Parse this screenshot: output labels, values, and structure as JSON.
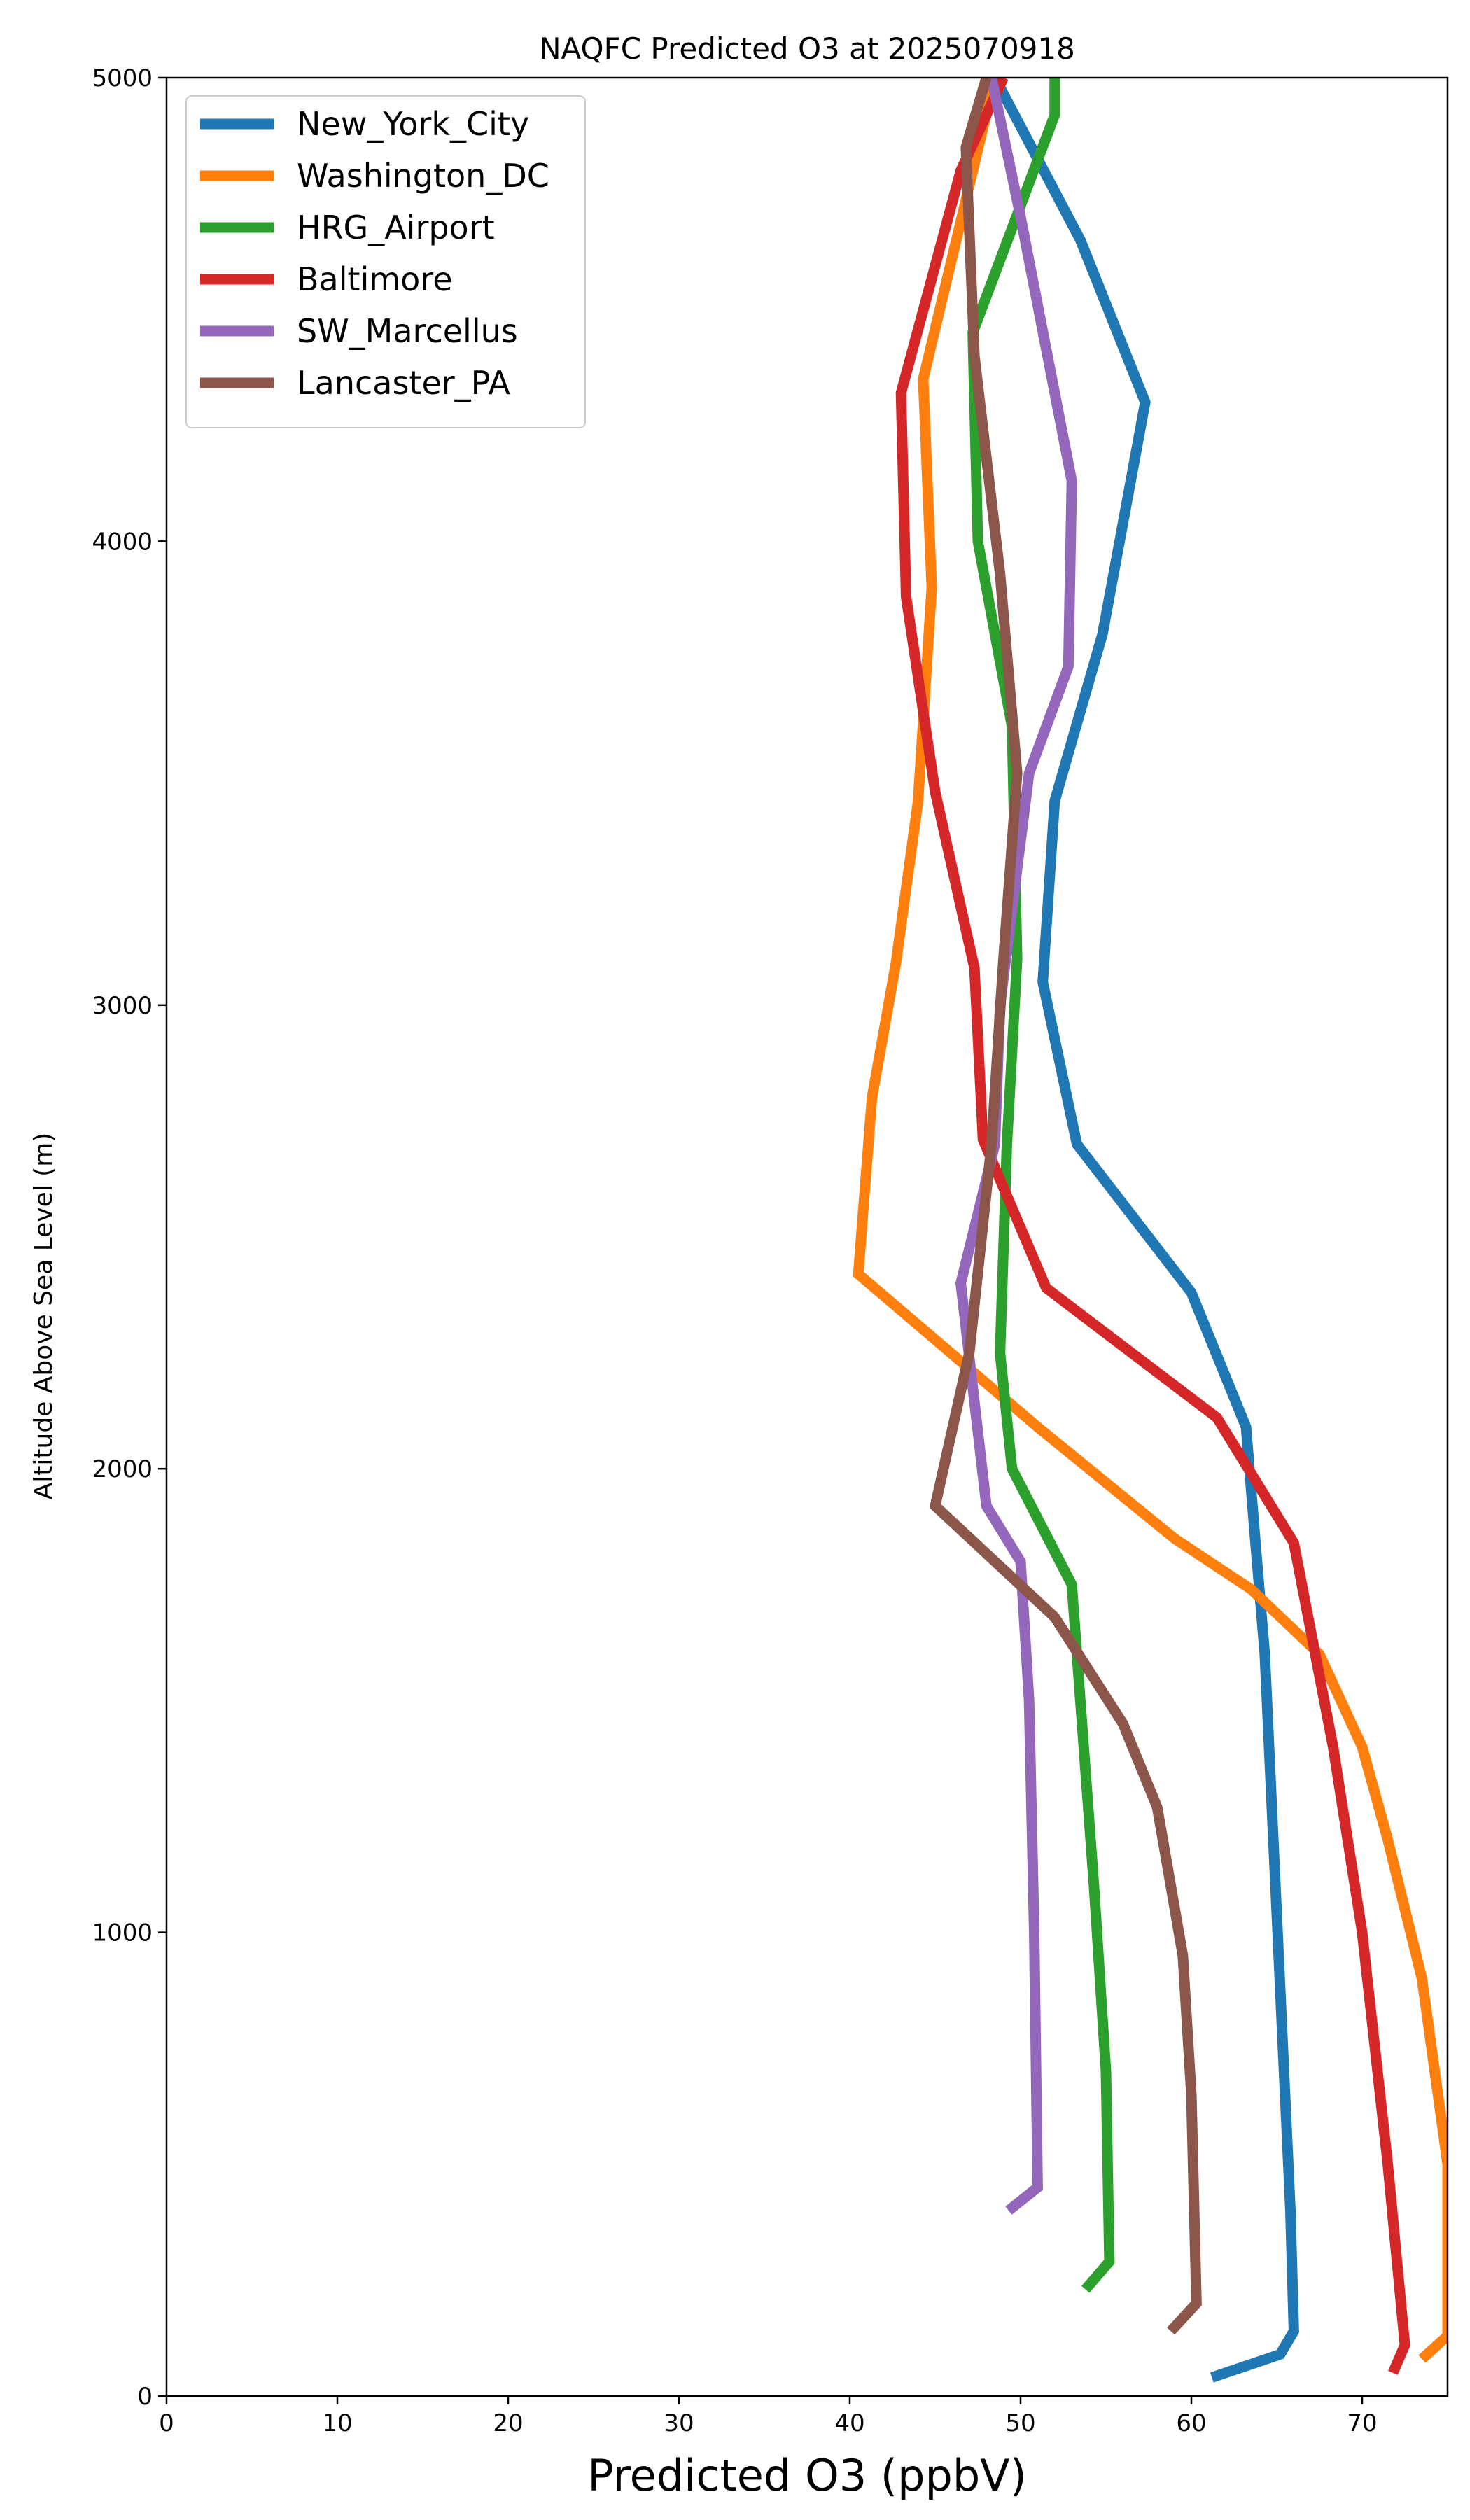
{
  "chart_data": {
    "type": "line",
    "title": "NAQFC Predicted O3 at 2025070918",
    "xlabel": "Predicted O3 (ppbV)",
    "ylabel": "Altitude Above Sea Level (m)",
    "xlim": [
      0,
      75
    ],
    "ylim": [
      0,
      5000
    ],
    "xticks": [
      0,
      10,
      20,
      30,
      40,
      50,
      60,
      70
    ],
    "yticks": [
      0,
      1000,
      2000,
      3000,
      4000,
      5000
    ],
    "legend_position": "upper-left",
    "grid": false,
    "series": [
      {
        "name": "New_York_City",
        "color": "#1f77b4",
        "points": [
          [
            61.2,
            40
          ],
          [
            65.2,
            90
          ],
          [
            66.0,
            140
          ],
          [
            65.8,
            400
          ],
          [
            65.3,
            800
          ],
          [
            64.8,
            1200
          ],
          [
            64.3,
            1600
          ],
          [
            63.8,
            1820
          ],
          [
            63.2,
            2090
          ],
          [
            60.0,
            2380
          ],
          [
            53.3,
            2700
          ],
          [
            51.3,
            3050
          ],
          [
            52.0,
            3440
          ],
          [
            54.8,
            3800
          ],
          [
            57.3,
            4300
          ],
          [
            53.5,
            4650
          ],
          [
            48.5,
            5000
          ]
        ]
      },
      {
        "name": "Washington_DC",
        "color": "#ff7f0e",
        "points": [
          [
            73.5,
            80
          ],
          [
            75.0,
            130
          ],
          [
            75.0,
            500
          ],
          [
            73.5,
            900
          ],
          [
            71.5,
            1200
          ],
          [
            70.0,
            1400
          ],
          [
            67.5,
            1600
          ],
          [
            63.5,
            1740
          ],
          [
            59.0,
            1850
          ],
          [
            51.0,
            2090
          ],
          [
            40.5,
            2420
          ],
          [
            41.3,
            2800
          ],
          [
            42.7,
            3090
          ],
          [
            44.0,
            3440
          ],
          [
            44.8,
            3900
          ],
          [
            44.3,
            4350
          ],
          [
            48.5,
            5000
          ]
        ]
      },
      {
        "name": "HRG_Airport",
        "color": "#2ca02c",
        "points": [
          [
            53.8,
            230
          ],
          [
            55.2,
            290
          ],
          [
            55.0,
            700
          ],
          [
            54.3,
            1100
          ],
          [
            53.5,
            1500
          ],
          [
            53.0,
            1750
          ],
          [
            49.5,
            2000
          ],
          [
            48.8,
            2250
          ],
          [
            49.2,
            2700
          ],
          [
            49.8,
            3100
          ],
          [
            49.5,
            3600
          ],
          [
            47.5,
            4000
          ],
          [
            47.2,
            4450
          ],
          [
            52.0,
            4920
          ],
          [
            52.0,
            5000
          ]
        ]
      },
      {
        "name": "Baltimore",
        "color": "#d62728",
        "points": [
          [
            71.8,
            50
          ],
          [
            72.5,
            110
          ],
          [
            71.5,
            500
          ],
          [
            70.0,
            1000
          ],
          [
            68.3,
            1400
          ],
          [
            66.0,
            1840
          ],
          [
            61.5,
            2110
          ],
          [
            51.5,
            2390
          ],
          [
            47.8,
            2710
          ],
          [
            47.3,
            3080
          ],
          [
            45.0,
            3460
          ],
          [
            43.3,
            3880
          ],
          [
            43.0,
            4320
          ],
          [
            46.5,
            4800
          ],
          [
            49.0,
            5000
          ]
        ]
      },
      {
        "name": "SW_Marcellus",
        "color": "#9467bd",
        "points": [
          [
            49.3,
            400
          ],
          [
            51.0,
            450
          ],
          [
            50.8,
            1000
          ],
          [
            50.5,
            1500
          ],
          [
            50.0,
            1800
          ],
          [
            48.0,
            1920
          ],
          [
            46.5,
            2400
          ],
          [
            48.5,
            2700
          ],
          [
            48.8,
            3000
          ],
          [
            50.5,
            3500
          ],
          [
            52.8,
            3730
          ],
          [
            53.0,
            4130
          ],
          [
            50.0,
            4700
          ],
          [
            48.3,
            5000
          ]
        ]
      },
      {
        "name": "Lancaster_PA",
        "color": "#8c564b",
        "points": [
          [
            58.8,
            140
          ],
          [
            60.3,
            200
          ],
          [
            60.0,
            650
          ],
          [
            59.5,
            950
          ],
          [
            58.8,
            1100
          ],
          [
            58.0,
            1270
          ],
          [
            56.0,
            1450
          ],
          [
            52.0,
            1680
          ],
          [
            45.0,
            1920
          ],
          [
            47.0,
            2250
          ],
          [
            48.3,
            2700
          ],
          [
            49.0,
            3100
          ],
          [
            49.8,
            3500
          ],
          [
            48.8,
            3930
          ],
          [
            47.3,
            4400
          ],
          [
            46.8,
            4850
          ],
          [
            48.0,
            5000
          ]
        ]
      }
    ]
  }
}
